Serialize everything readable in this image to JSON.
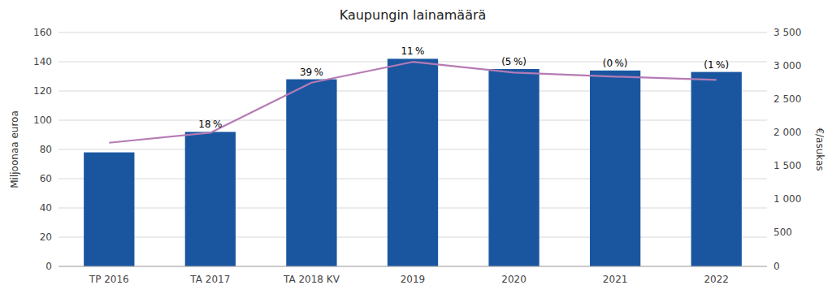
{
  "chart_data": {
    "type": "bar",
    "title": "Kaupungin lainamäärä",
    "categories": [
      "TP 2016",
      "TA 2017",
      "TA 2018 KV",
      "2019",
      "2020",
      "2021",
      "2022"
    ],
    "series": [
      {
        "type": "bar",
        "color": "#1a56a0",
        "values": [
          78,
          92,
          128,
          142,
          135,
          134,
          133
        ],
        "annotations": [
          null,
          "18 %",
          "39 %",
          "11 %",
          "(5 %)",
          "(0 %)",
          "(1 %)"
        ]
      },
      {
        "type": "line",
        "color": "#b57bb5",
        "axis": "y2",
        "values": [
          1850,
          2000,
          2750,
          3060,
          2900,
          2840,
          2790
        ]
      }
    ],
    "y_label": "Miljoonaa euroa",
    "y2_label": "€/asukas",
    "ylim": [
      0,
      160
    ],
    "yticks": [
      0,
      20,
      40,
      60,
      80,
      100,
      120,
      140,
      160
    ],
    "y2lim": [
      0,
      3500
    ],
    "y2ticks": [
      0,
      500,
      {
        "value": 1000,
        "label": "1 000"
      },
      {
        "value": 1500,
        "label": "1 500"
      },
      {
        "value": 2000,
        "label": "2 000"
      },
      {
        "value": 2500,
        "label": "2 500"
      },
      {
        "value": 3000,
        "label": "3 000"
      },
      {
        "value": 3500,
        "label": "3 500"
      }
    ],
    "grid": true
  }
}
